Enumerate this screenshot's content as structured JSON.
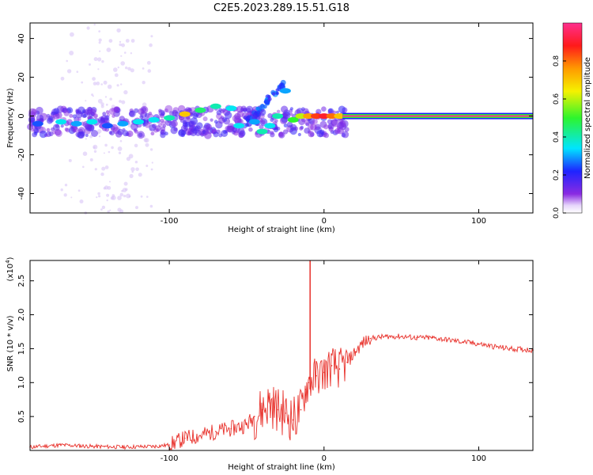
{
  "figure_title": "C2E5.2023.289.15.51.G18",
  "chart_data": [
    {
      "type": "heatmap",
      "title": "",
      "xlabel": "Height of straight line (km)",
      "ylabel": "Frequency (Hz)",
      "xlim": [
        -190,
        135
      ],
      "ylim": [
        -50,
        48
      ],
      "xticks": [
        -100,
        0,
        100
      ],
      "yticks": [
        -40,
        -20,
        0,
        20,
        40
      ],
      "colorbar": {
        "label": "Normalized spectral amplitude",
        "range": [
          0,
          1
        ],
        "ticks": [
          0.0,
          0.2,
          0.4,
          0.6,
          0.8
        ]
      },
      "ridge_points": [
        {
          "x": -185,
          "y": -4,
          "amp": 0.25
        },
        {
          "x": -170,
          "y": -3,
          "amp": 0.35
        },
        {
          "x": -160,
          "y": -4,
          "amp": 0.3
        },
        {
          "x": -150,
          "y": -3,
          "amp": 0.35
        },
        {
          "x": -140,
          "y": -5,
          "amp": 0.25
        },
        {
          "x": -130,
          "y": -4,
          "amp": 0.3
        },
        {
          "x": -120,
          "y": -3,
          "amp": 0.35
        },
        {
          "x": -110,
          "y": -2,
          "amp": 0.35
        },
        {
          "x": -100,
          "y": -1,
          "amp": 0.4
        },
        {
          "x": -90,
          "y": 1,
          "amp": 0.7
        },
        {
          "x": -80,
          "y": 3,
          "amp": 0.45
        },
        {
          "x": -70,
          "y": 5,
          "amp": 0.4
        },
        {
          "x": -60,
          "y": 4,
          "amp": 0.35
        },
        {
          "x": -55,
          "y": -5,
          "amp": 0.35
        },
        {
          "x": -45,
          "y": -3,
          "amp": 0.3
        },
        {
          "x": -40,
          "y": -8,
          "amp": 0.4
        },
        {
          "x": -35,
          "y": -5,
          "amp": 0.35
        },
        {
          "x": -30,
          "y": 0,
          "amp": 0.4
        },
        {
          "x": -25,
          "y": 13,
          "amp": 0.3
        },
        {
          "x": -20,
          "y": -2,
          "amp": 0.5
        },
        {
          "x": -15,
          "y": 0,
          "amp": 0.6
        },
        {
          "x": -10,
          "y": 0,
          "amp": 0.75
        },
        {
          "x": -5,
          "y": 0,
          "amp": 0.85
        },
        {
          "x": 0,
          "y": 0,
          "amp": 0.9
        },
        {
          "x": 5,
          "y": 0,
          "amp": 0.8
        },
        {
          "x": 10,
          "y": 0,
          "amp": 0.7
        }
      ],
      "steady_line": {
        "x_start": 12,
        "x_end": 135,
        "y": 0,
        "amp": 1.0
      }
    },
    {
      "type": "line",
      "title": "",
      "xlabel": "Height of straight line (km)",
      "ylabel": "SNR (10 * v/v)",
      "y_scale_label": "(x10",
      "y_scale_exp": "4",
      "xlim": [
        -190,
        135
      ],
      "ylim": [
        0,
        2.8
      ],
      "xticks": [
        -100,
        0,
        100
      ],
      "yticks": [
        0.5,
        1.0,
        1.5,
        2.0,
        2.5
      ],
      "ytick_labels": [
        "0.5",
        "1.0",
        "1.5",
        "2.0",
        "2.5"
      ],
      "color": "#e8302a",
      "series": [
        {
          "x": [
            -190,
            -170,
            -150,
            -130,
            -110,
            -100,
            -90,
            -80,
            -70,
            -60,
            -50,
            -45,
            -40,
            -35,
            -30,
            -25,
            -20,
            -15,
            -12,
            -10,
            -5,
            0,
            5,
            10,
            15,
            20,
            25,
            30,
            40,
            50,
            60,
            70,
            80,
            90,
            100,
            110,
            120,
            135
          ],
          "y": [
            0.05,
            0.08,
            0.06,
            0.05,
            0.06,
            0.08,
            0.18,
            0.22,
            0.28,
            0.32,
            0.38,
            0.5,
            0.6,
            0.7,
            0.6,
            0.55,
            0.45,
            0.6,
            0.9,
            1.0,
            1.1,
            1.15,
            1.25,
            1.2,
            1.3,
            1.45,
            1.58,
            1.65,
            1.68,
            1.68,
            1.66,
            1.66,
            1.63,
            1.6,
            1.57,
            1.53,
            1.5,
            1.48
          ]
        }
      ],
      "spike": {
        "x": -9,
        "y": 2.8
      }
    }
  ]
}
